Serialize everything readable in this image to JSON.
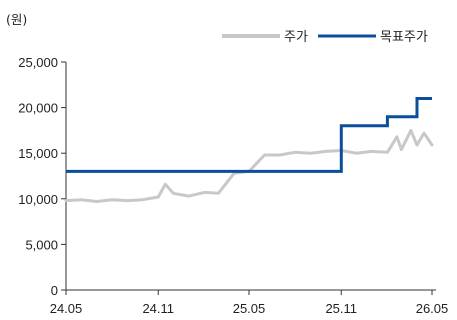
{
  "chart_data": {
    "type": "line",
    "unit_label": "(원)",
    "colors": {
      "price": "#c8c8c8",
      "target": "#0b4f9a"
    },
    "y_ticks": [
      "25,000",
      "20,000",
      "15,000",
      "10,000",
      "5,000",
      "0"
    ],
    "y_tick_values": [
      25000,
      20000,
      15000,
      10000,
      5000,
      0
    ],
    "ylim": [
      0,
      25000
    ],
    "x_ticks": [
      "24.05",
      "24.11",
      "25.05",
      "25.11",
      "26.05"
    ],
    "x_tick_values": [
      "2024-05",
      "2024-11",
      "2025-05",
      "2025-11",
      "2026-05"
    ],
    "xlim": [
      "2024-05",
      "2026-05"
    ],
    "grid": false,
    "legend_position": "top-right",
    "series": [
      {
        "name": "주가",
        "style": "line",
        "x": [
          "2024-05",
          "2024-06",
          "2024-07",
          "2024-08",
          "2024-09",
          "2024-10",
          "2024-11",
          "2024-11-15",
          "2024-12",
          "2025-01",
          "2025-02",
          "2025-03",
          "2025-04",
          "2025-05",
          "2025-06",
          "2025-07",
          "2025-08",
          "2025-09",
          "2025-10",
          "2025-11",
          "2025-12",
          "2026-01",
          "2026-02",
          "2026-02-20",
          "2026-03",
          "2026-03-20",
          "2026-04",
          "2026-04-15",
          "2026-05"
        ],
        "values": [
          9800,
          9900,
          9700,
          9900,
          9800,
          9900,
          10200,
          11600,
          10600,
          10300,
          10700,
          10600,
          12800,
          13000,
          14800,
          14800,
          15100,
          15000,
          15200,
          15300,
          15000,
          15200,
          15100,
          16800,
          15400,
          17500,
          15900,
          17200,
          15900
        ]
      },
      {
        "name": "목표주가",
        "style": "step",
        "x": [
          "2024-05",
          "2025-11",
          "2026-02",
          "2026-04",
          "2026-05"
        ],
        "values": [
          13000,
          18000,
          19000,
          21000,
          21000
        ]
      }
    ]
  }
}
